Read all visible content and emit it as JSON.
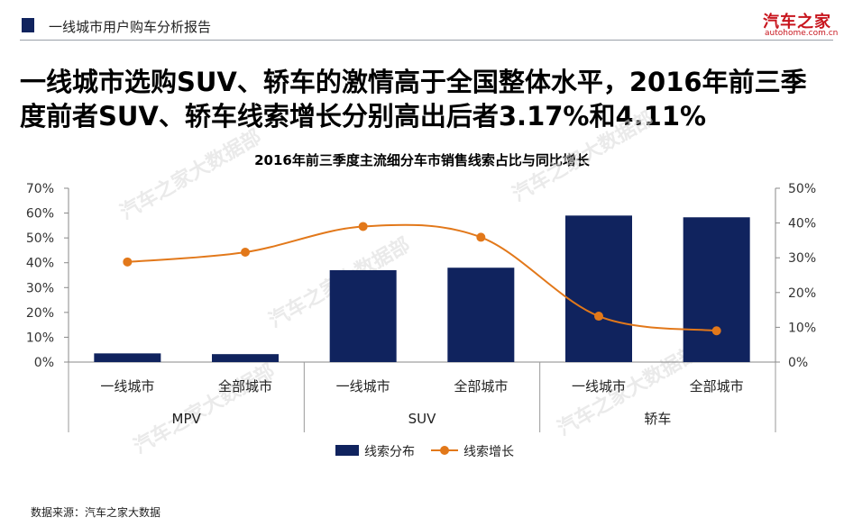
{
  "header": {
    "title": "一线城市用户购车分析报告",
    "logo_main": "汽车之家",
    "logo_sub": "autohome.com.cn"
  },
  "headline": "一线城市选购SUV、轿车的激情高于全国整体水平，2016年前三季度前者SUV、轿车线索增长分别高出后者3.17%和4.11%",
  "watermark": "汽车之家大数据部",
  "footer": {
    "source": "数据来源：汽车之家大数据"
  },
  "colors": {
    "bar": "#10235e",
    "line": "#e2781a",
    "brand": "#c8161e"
  },
  "chart_data": {
    "type": "bar",
    "title": "2016年前三季度主流细分车市销售线索占比与同比增长",
    "categories": [
      "一线城市",
      "全部城市",
      "一线城市",
      "全部城市",
      "一线城市",
      "全部城市"
    ],
    "groups": [
      {
        "label": "MPV",
        "span": 2
      },
      {
        "label": "SUV",
        "span": 2
      },
      {
        "label": "轿车",
        "span": 2
      }
    ],
    "series": [
      {
        "name": "线索分布",
        "type": "bar",
        "axis": "left",
        "values": [
          3.5,
          3.2,
          37.0,
          38.0,
          59.0,
          58.3
        ]
      },
      {
        "name": "线索增长",
        "type": "line",
        "axis": "right",
        "smooth": true,
        "values": [
          28.8,
          31.6,
          39.0,
          35.9,
          13.2,
          9.0
        ]
      }
    ],
    "y_left": {
      "min": 0,
      "max": 70,
      "step": 10,
      "tick_labels": [
        "0%",
        "10%",
        "20%",
        "30%",
        "40%",
        "50%",
        "60%",
        "70%"
      ]
    },
    "y_right": {
      "min": 0,
      "max": 50,
      "step": 10,
      "tick_labels": [
        "0%",
        "10%",
        "20%",
        "30%",
        "40%",
        "50%"
      ]
    },
    "grid": false,
    "legend_position": "bottom"
  }
}
